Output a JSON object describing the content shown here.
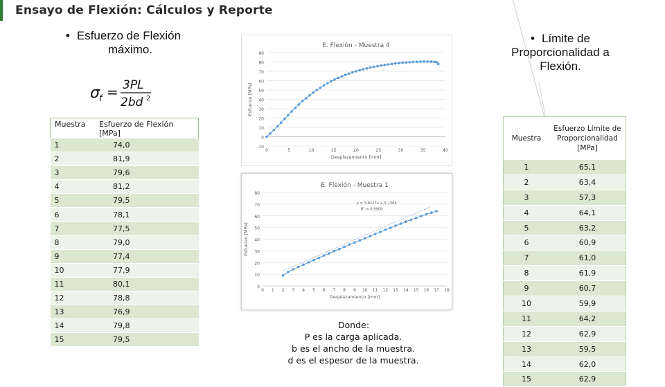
{
  "title": "Ensayo de Flexión: Cálculos y Reporte",
  "bullet_left": {
    "line1": "Esfuerzo de Flexión",
    "line2": "máximo."
  },
  "bullet_right": {
    "line1": "Límite de",
    "line2": "Proporcionalidad a",
    "line3": "Flexión."
  },
  "formula": {
    "lhs": "σ",
    "lhs_sub": "f",
    "equals": "=",
    "numerator": "3PL",
    "denominator": "2bd",
    "den_exp": "2"
  },
  "table_left": {
    "headers": [
      "Muestra",
      "Esfuerzo de Flexión [MPa]"
    ],
    "rows": [
      [
        "1",
        "74,0"
      ],
      [
        "2",
        "81,9"
      ],
      [
        "3",
        "79,6"
      ],
      [
        "4",
        "81,2"
      ],
      [
        "5",
        "79,5"
      ],
      [
        "6",
        "78,1"
      ],
      [
        "7",
        "77,5"
      ],
      [
        "8",
        "79,0"
      ],
      [
        "9",
        "77,4"
      ],
      [
        "10",
        "77,9"
      ],
      [
        "11",
        "80,1"
      ],
      [
        "12",
        "78,8"
      ],
      [
        "13",
        "76,9"
      ],
      [
        "14",
        "79,8"
      ],
      [
        "15",
        "79,5"
      ]
    ]
  },
  "table_right": {
    "headers": [
      "Muestra",
      "Esfuerzo Límite de Proporcionalidad [MPa]"
    ],
    "rows": [
      [
        "1",
        "65,1"
      ],
      [
        "2",
        "63,4"
      ],
      [
        "3",
        "57,3"
      ],
      [
        "4",
        "64,1"
      ],
      [
        "5",
        "63,2"
      ],
      [
        "6",
        "60,9"
      ],
      [
        "7",
        "61,0"
      ],
      [
        "8",
        "61,9"
      ],
      [
        "9",
        "60,7"
      ],
      [
        "10",
        "59,9"
      ],
      [
        "11",
        "64,2"
      ],
      [
        "12",
        "62,9"
      ],
      [
        "13",
        "59,5"
      ],
      [
        "14",
        "62,0"
      ],
      [
        "15",
        "62,9"
      ]
    ]
  },
  "notes": {
    "line1": "Donde:",
    "line2": "P es la carga aplicada.",
    "line3": "b es el ancho de la muestra.",
    "line4": "d es el espesor de la muestra."
  },
  "chart_data": [
    {
      "type": "scatter",
      "title": "E. Flexión - Muestra 4",
      "xlabel": "Desplazamiento [mm]",
      "ylabel": "Esfuerzo [MPa]",
      "xlim": [
        0,
        40
      ],
      "ylim": [
        -10,
        90
      ],
      "xticks": [
        0,
        5,
        10,
        15,
        20,
        25,
        30,
        35,
        40
      ],
      "yticks": [
        -10,
        0,
        10,
        20,
        30,
        40,
        50,
        60,
        70,
        80,
        90
      ],
      "color": "#5b9bd5",
      "x": [
        0,
        0.8,
        1.6,
        2.4,
        3.2,
        4,
        4.8,
        5.6,
        6.4,
        7.2,
        8,
        8.8,
        9.6,
        10.4,
        11.2,
        12,
        12.8,
        13.6,
        14.4,
        15.2,
        16,
        16.8,
        17.6,
        18.4,
        19.2,
        20,
        20.8,
        21.6,
        22.4,
        23.2,
        24,
        24.8,
        25.6,
        26.4,
        27.2,
        28,
        28.8,
        29.6,
        30.4,
        31.2,
        32,
        32.8,
        33.6,
        34.4,
        35.2,
        36,
        36.8,
        37.5,
        38,
        38.4
      ],
      "y": [
        0,
        3.5,
        7.2,
        11,
        15,
        19,
        23,
        27,
        31,
        34.5,
        38,
        41.2,
        44.3,
        47.2,
        50,
        52.5,
        55,
        57.2,
        59.3,
        61.2,
        63,
        64.7,
        66.2,
        67.6,
        68.9,
        70.1,
        71.2,
        72.2,
        73.1,
        74,
        74.8,
        75.5,
        76.2,
        76.8,
        77.4,
        77.9,
        78.4,
        78.8,
        79.2,
        79.5,
        79.8,
        80,
        80.2,
        80.3,
        80.4,
        80.4,
        80.3,
        80.2,
        79.9,
        78
      ]
    },
    {
      "type": "scatter",
      "title": "E. Flexión - Muestra 1",
      "xlabel": "Desplazamiento [mm]",
      "ylabel": "Esfuerzo [MPa]",
      "xlim": [
        0,
        18
      ],
      "ylim": [
        0,
        80
      ],
      "xticks": [
        0,
        1,
        2,
        3,
        4,
        5,
        6,
        7,
        8,
        9,
        10,
        11,
        12,
        13,
        14,
        15,
        16,
        17,
        18
      ],
      "yticks": [
        0,
        10,
        20,
        30,
        40,
        50,
        60,
        70,
        80
      ],
      "color": "#5b9bd5",
      "trendline": {
        "equation": "y = 3,8227x + 5,1364",
        "r2": "R² = 0,9908"
      },
      "x": [
        2,
        2.5,
        3,
        3.5,
        4,
        4.5,
        5,
        5.5,
        6,
        6.5,
        7,
        7.5,
        8,
        8.5,
        9,
        9.5,
        10,
        10.5,
        11,
        11.5,
        12,
        12.5,
        13,
        13.5,
        14,
        14.5,
        15,
        15.5,
        16,
        16.5,
        17
      ],
      "y": [
        9,
        12,
        14.2,
        16.2,
        18.2,
        20.2,
        22,
        24,
        26,
        27.8,
        29.8,
        31.5,
        33.5,
        35.5,
        37.2,
        39,
        40.8,
        42.6,
        44.4,
        46.2,
        48,
        49.8,
        51.6,
        53.3,
        55,
        56.6,
        58.2,
        59.8,
        61.3,
        62.7,
        64
      ]
    }
  ]
}
